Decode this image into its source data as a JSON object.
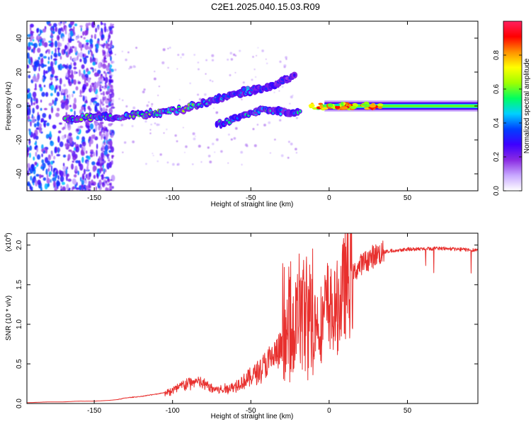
{
  "figure_title": "C2E1.2025.040.15.03.R09",
  "chart_data": [
    {
      "type": "heatmap",
      "title": "C2E1.2025.040.15.03.R09",
      "xlabel": "Height of straight line (km)",
      "ylabel": "Frequency (Hz)",
      "xlim": [
        -193,
        95
      ],
      "ylim": [
        -50,
        50
      ],
      "xticks": [
        -150,
        -100,
        -50,
        0,
        50
      ],
      "yticks": [
        -40,
        -20,
        0,
        20,
        40
      ],
      "xtick_labels": [
        "-150",
        "-100",
        "-50",
        "0",
        "50"
      ],
      "ytick_labels": [
        "-40",
        "-20",
        "0",
        "20",
        "40"
      ],
      "colorbar": {
        "label": "Normalized spectral amplitude",
        "range": [
          0,
          1
        ],
        "ticks": [
          0.0,
          0.2,
          0.4,
          0.6,
          0.8
        ],
        "tick_labels": [
          "0.0",
          "0.2",
          "0.4",
          "0.6",
          "0.8"
        ],
        "colors": [
          "#ffffff",
          "#c8a8ff",
          "#8a2be2",
          "#3d00ff",
          "#0040ff",
          "#00d0ff",
          "#00ff60",
          "#a0ff00",
          "#ffff00",
          "#ff9000",
          "#ff0000",
          "#ff2060"
        ]
      },
      "echo_trace": [
        {
          "x": -168,
          "f": -7.5,
          "a": 0.5
        },
        {
          "x": -160,
          "f": -7,
          "a": 0.55
        },
        {
          "x": -150,
          "f": -6.5,
          "a": 0.5
        },
        {
          "x": -140,
          "f": -6.5,
          "a": 0.45
        },
        {
          "x": -130,
          "f": -6,
          "a": 0.5
        },
        {
          "x": -120,
          "f": -5,
          "a": 0.5
        },
        {
          "x": -110,
          "f": -4,
          "a": 0.55
        },
        {
          "x": -100,
          "f": -3,
          "a": 0.5
        },
        {
          "x": -90,
          "f": -1,
          "a": 0.55
        },
        {
          "x": -82,
          "f": 1,
          "a": 0.5
        },
        {
          "x": -75,
          "f": 3,
          "a": 0.45
        },
        {
          "x": -68,
          "f": 5,
          "a": 0.4
        },
        {
          "x": -60,
          "f": 7,
          "a": 0.35
        },
        {
          "x": -52,
          "f": 9,
          "a": 0.35
        },
        {
          "x": -44,
          "f": 10,
          "a": 0.3
        },
        {
          "x": -36,
          "f": 12,
          "a": 0.25
        },
        {
          "x": -28,
          "f": 15,
          "a": 0.25
        },
        {
          "x": -22,
          "f": 18,
          "a": 0.2
        }
      ],
      "lower_trace": [
        {
          "x": -72,
          "f": -11,
          "a": 0.4
        },
        {
          "x": -65,
          "f": -9,
          "a": 0.4
        },
        {
          "x": -58,
          "f": -6,
          "a": 0.4
        },
        {
          "x": -50,
          "f": -4,
          "a": 0.4
        },
        {
          "x": -42,
          "f": -2,
          "a": 0.5
        },
        {
          "x": -34,
          "f": -3,
          "a": 0.35
        },
        {
          "x": -26,
          "f": -4,
          "a": 0.3
        },
        {
          "x": -18,
          "f": -3,
          "a": 0.45
        }
      ],
      "ground_band": {
        "x_start": -12,
        "x_end": 95,
        "f": 0,
        "a_peak": 0.9
      }
    },
    {
      "type": "line",
      "xlabel": "Height of straight line (km)",
      "ylabel": "SNR (10 * v/v)",
      "y_exponent_label": "(x10",
      "y_exponent": "4",
      "y_exponent_close": ")",
      "xlim": [
        -193,
        95
      ],
      "ylim": [
        0,
        2.15
      ],
      "xticks": [
        -150,
        -100,
        -50,
        0,
        50
      ],
      "yticks": [
        0.0,
        0.5,
        1.0,
        1.5,
        2.0
      ],
      "xtick_labels": [
        "-150",
        "-100",
        "-50",
        "0",
        "50"
      ],
      "ytick_labels": [
        "0.0",
        "0.5",
        "1.0",
        "1.5",
        "2.0"
      ],
      "color": "#e8302e",
      "x": [
        -193,
        -180,
        -170,
        -160,
        -150,
        -140,
        -135,
        -130,
        -120,
        -110,
        -100,
        -95,
        -90,
        -85,
        -80,
        -75,
        -70,
        -65,
        -60,
        -55,
        -50,
        -45,
        -40,
        -35,
        -30,
        -25,
        -20,
        -17,
        -15,
        -12,
        -10,
        -8,
        -5,
        -2,
        0,
        3,
        5,
        8,
        10,
        12,
        15,
        18,
        20,
        25,
        30,
        35,
        40,
        45,
        50,
        60,
        70,
        80,
        90,
        95
      ],
      "values": [
        0.01,
        0.02,
        0.02,
        0.03,
        0.03,
        0.04,
        0.05,
        0.07,
        0.09,
        0.12,
        0.16,
        0.22,
        0.25,
        0.28,
        0.24,
        0.2,
        0.17,
        0.19,
        0.22,
        0.28,
        0.33,
        0.42,
        0.5,
        0.6,
        0.68,
        0.8,
        1.0,
        1.1,
        1.15,
        1.05,
        1.0,
        1.05,
        1.0,
        1.2,
        1.25,
        1.1,
        1.2,
        1.35,
        1.5,
        1.55,
        1.62,
        1.7,
        1.75,
        1.82,
        1.88,
        1.91,
        1.93,
        1.94,
        1.95,
        1.95,
        1.96,
        1.95,
        1.94,
        1.94
      ]
    }
  ]
}
